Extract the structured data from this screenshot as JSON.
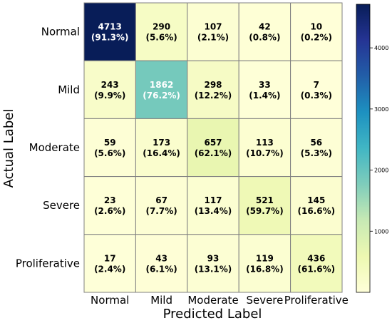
{
  "chart_data": {
    "type": "heatmap",
    "title": "",
    "xlabel": "Predicted Label",
    "ylabel": "Actual Label",
    "row_labels": [
      "Normal",
      "Mild",
      "Moderate",
      "Severe",
      "Proliferative"
    ],
    "col_labels": [
      "Normal",
      "Mild",
      "Moderate",
      "Severe",
      "Proliferative"
    ],
    "values": [
      [
        4713,
        290,
        107,
        42,
        10
      ],
      [
        243,
        1862,
        298,
        33,
        7
      ],
      [
        59,
        173,
        657,
        113,
        56
      ],
      [
        23,
        67,
        117,
        521,
        145
      ],
      [
        17,
        43,
        93,
        119,
        436
      ]
    ],
    "percents": [
      [
        "(91.3%)",
        "(5.6%)",
        "(2.1%)",
        "(0.8%)",
        "(0.2%)"
      ],
      [
        "(9.9%)",
        "(76.2%)",
        "(12.2%)",
        "(1.4%)",
        "(0.3%)"
      ],
      [
        "(5.6%)",
        "(16.4%)",
        "(62.1%)",
        "(10.7%)",
        "(5.3%)"
      ],
      [
        "(2.6%)",
        "(7.7%)",
        "(13.4%)",
        "(59.7%)",
        "(16.6%)"
      ],
      [
        "(2.4%)",
        "(6.1%)",
        "(13.1%)",
        "(16.8%)",
        "(61.6%)"
      ]
    ],
    "colormap": "YlGnBu",
    "color_range": [
      0,
      4713
    ],
    "colorbar_ticks": [
      1000,
      2000,
      3000,
      4000
    ],
    "grid": true
  }
}
